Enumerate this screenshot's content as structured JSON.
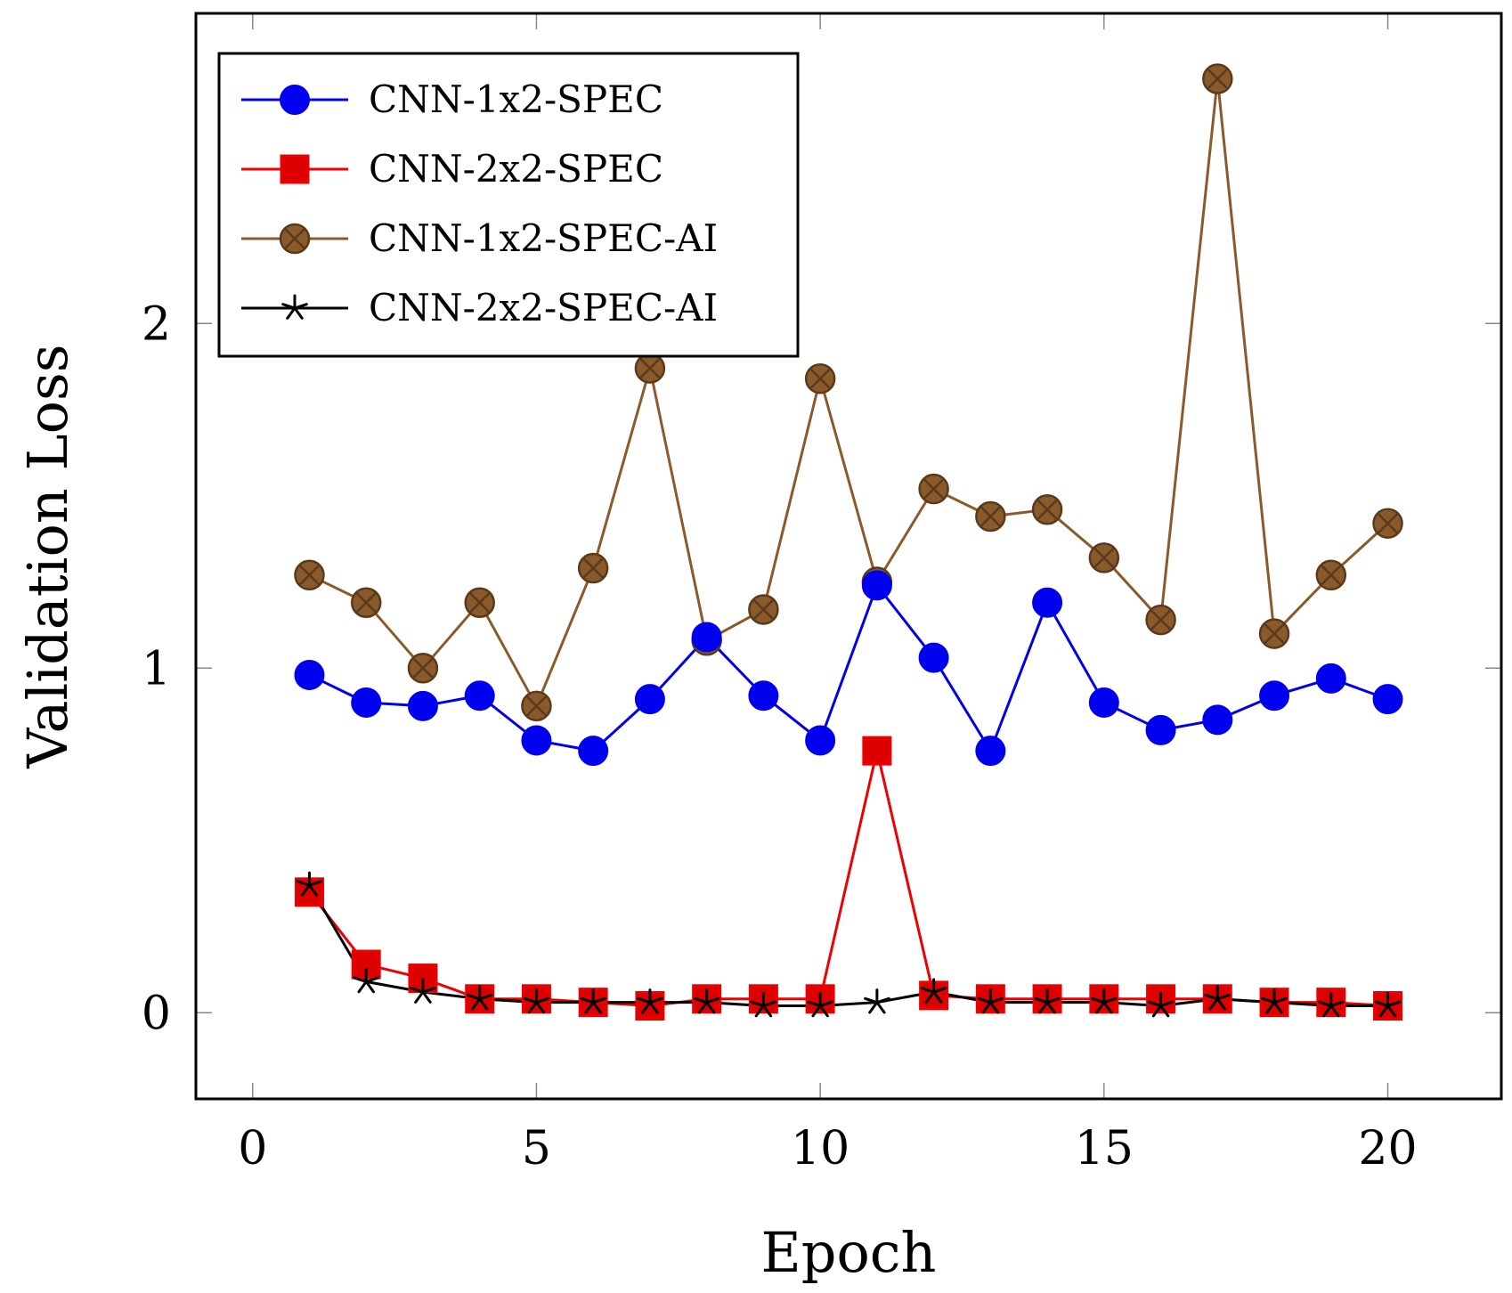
{
  "chart_data": {
    "type": "line",
    "title": "",
    "xlabel": "Epoch",
    "ylabel": "Validation Loss",
    "xlim": [
      -1,
      22
    ],
    "ylim": [
      -0.25,
      2.9
    ],
    "xticks": [
      0,
      5,
      10,
      15,
      20
    ],
    "yticks": [
      0,
      1,
      2
    ],
    "grid": false,
    "legend_position": "top-left",
    "x": [
      1,
      2,
      3,
      4,
      5,
      6,
      7,
      8,
      9,
      10,
      11,
      12,
      13,
      14,
      15,
      16,
      17,
      18,
      19,
      20
    ],
    "series": [
      {
        "name": "CNN-1x2-SPEC",
        "color": "#0000ee",
        "marker": "circle",
        "values": [
          0.98,
          0.9,
          0.89,
          0.92,
          0.79,
          0.76,
          0.91,
          1.09,
          0.92,
          0.79,
          1.24,
          1.03,
          0.76,
          1.19,
          0.9,
          0.82,
          0.85,
          0.92,
          0.97,
          0.91
        ]
      },
      {
        "name": "CNN-2x2-SPEC",
        "color": "#ee0000",
        "marker": "square",
        "values": [
          0.35,
          0.14,
          0.1,
          0.04,
          0.04,
          0.03,
          0.02,
          0.04,
          0.04,
          0.04,
          0.76,
          0.05,
          0.04,
          0.04,
          0.04,
          0.04,
          0.04,
          0.03,
          0.03,
          0.02
        ]
      },
      {
        "name": "CNN-1x2-SPEC-AI",
        "color": "#8b5a2b",
        "marker": "circled-x",
        "values": [
          1.27,
          1.19,
          1.0,
          1.19,
          0.89,
          1.29,
          1.87,
          1.08,
          1.17,
          1.84,
          1.25,
          1.52,
          1.44,
          1.46,
          1.32,
          1.14,
          2.71,
          1.1,
          1.27,
          1.42
        ]
      },
      {
        "name": "CNN-2x2-SPEC-AI",
        "color": "#000000",
        "marker": "star",
        "values": [
          0.37,
          0.09,
          0.06,
          0.04,
          0.03,
          0.03,
          0.03,
          0.03,
          0.02,
          0.02,
          0.03,
          0.06,
          0.03,
          0.03,
          0.03,
          0.02,
          0.04,
          0.03,
          0.02,
          0.02
        ]
      }
    ]
  }
}
